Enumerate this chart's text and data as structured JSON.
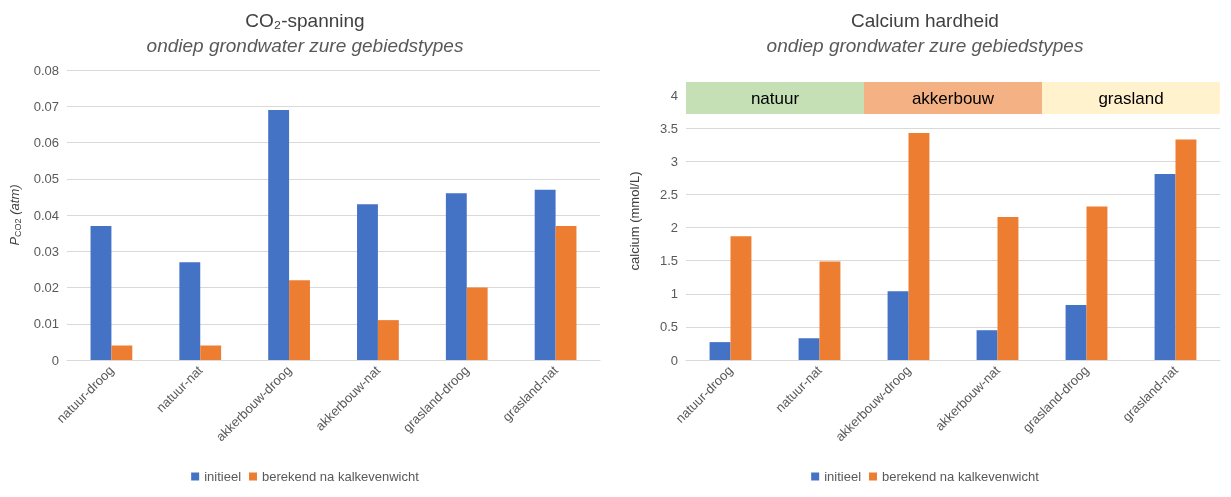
{
  "chart_data": [
    {
      "type": "bar",
      "title": "CO₂-spanning",
      "subtitle": "ondiep grondwater zure gebiedstypes",
      "ylabel": "P$_{CO2}$ (atm)",
      "categories": [
        "natuur-droog",
        "natuur-nat",
        "akkerbouw-droog",
        "akkerbouw-nat",
        "grasland-droog",
        "grasland-nat"
      ],
      "series": [
        {
          "name": "initieel",
          "color": "#4472c4",
          "values": [
            0.037,
            0.027,
            0.069,
            0.043,
            0.046,
            0.047
          ]
        },
        {
          "name": "berekend na kalkevenwicht",
          "color": "#ed7d31",
          "values": [
            0.004,
            0.004,
            0.022,
            0.011,
            0.02,
            0.037
          ]
        }
      ],
      "ylim": [
        0,
        0.08
      ],
      "yticks": [
        0,
        0.01,
        0.02,
        0.03,
        0.04,
        0.05,
        0.06,
        0.07,
        0.08
      ],
      "grid": "y",
      "legend": "bottom"
    },
    {
      "type": "bar",
      "title": "Calcium hardheid",
      "subtitle": "ondiep grondwater zure gebiedstypes",
      "ylabel": "calcium (mmol/L)",
      "categories": [
        "natuur-droog",
        "natuur-nat",
        "akkerbouw-droog",
        "akkerbouw-nat",
        "grasland-droog",
        "grasland-nat"
      ],
      "series": [
        {
          "name": "initieel",
          "color": "#4472c4",
          "values": [
            0.27,
            0.33,
            1.04,
            0.45,
            0.83,
            2.81
          ]
        },
        {
          "name": "berekend na kalkevenwicht",
          "color": "#ed7d31",
          "values": [
            1.87,
            1.49,
            3.43,
            2.16,
            2.32,
            3.33
          ]
        }
      ],
      "bands": [
        {
          "axis": "x",
          "from": "natuur-droog",
          "to": "natuur-nat",
          "label": "natuur",
          "color": "#c5e0b4"
        },
        {
          "axis": "x",
          "from": "akkerbouw-droog",
          "to": "akkerbouw-nat",
          "label": "akkerbouw",
          "color": "#f4b183"
        },
        {
          "axis": "x",
          "from": "grasland-droog",
          "to": "grasland-nat",
          "label": "grasland",
          "color": "#fff2cc"
        }
      ],
      "ylim": [
        0,
        4.2
      ],
      "yticks": [
        0,
        0.5,
        1,
        1.5,
        2,
        2.5,
        3,
        3.5,
        4
      ],
      "grid": "y",
      "legend": "bottom"
    }
  ]
}
